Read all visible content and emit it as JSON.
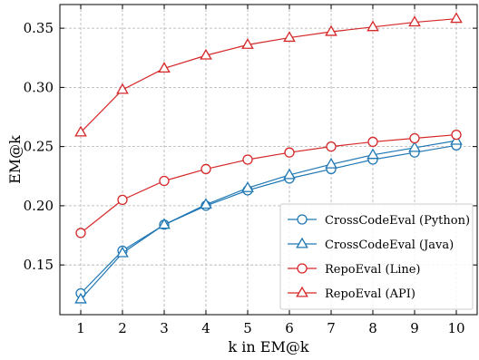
{
  "chart_data": {
    "type": "line",
    "title": "",
    "xlabel": "k in EM@k",
    "ylabel": "EM@k",
    "x": [
      1,
      2,
      3,
      4,
      5,
      6,
      7,
      8,
      9,
      10
    ],
    "xlim": [
      0.5,
      10.5
    ],
    "ylim": [
      0.108,
      0.37
    ],
    "yticks": [
      0.15,
      0.2,
      0.25,
      0.3,
      0.35
    ],
    "ytick_labels": [
      "0.15",
      "0.20",
      "0.25",
      "0.30",
      "0.35"
    ],
    "xtick_labels": [
      "1",
      "2",
      "3",
      "4",
      "5",
      "6",
      "7",
      "8",
      "9",
      "10"
    ],
    "grid": true,
    "legend_position": "bottom-right",
    "series": [
      {
        "name": "CrossCodeEval (Python)",
        "marker": "circle",
        "color": "#1f77b4",
        "values": [
          0.126,
          0.162,
          0.184,
          0.2,
          0.213,
          0.223,
          0.231,
          0.239,
          0.245,
          0.251
        ]
      },
      {
        "name": "CrossCodeEval (Java)",
        "marker": "triangle",
        "color": "#1f77b4",
        "values": [
          0.121,
          0.16,
          0.184,
          0.201,
          0.215,
          0.226,
          0.235,
          0.243,
          0.249,
          0.255
        ]
      },
      {
        "name": "RepoEval (Line)",
        "marker": "circle",
        "color": "#d62728",
        "values": [
          0.177,
          0.205,
          0.221,
          0.231,
          0.239,
          0.245,
          0.25,
          0.254,
          0.257,
          0.26
        ]
      },
      {
        "name": "RepoEval (API)",
        "marker": "triangle",
        "color": "#d62728",
        "values": [
          0.262,
          0.298,
          0.316,
          0.327,
          0.336,
          0.342,
          0.347,
          0.351,
          0.355,
          0.358
        ]
      }
    ]
  }
}
